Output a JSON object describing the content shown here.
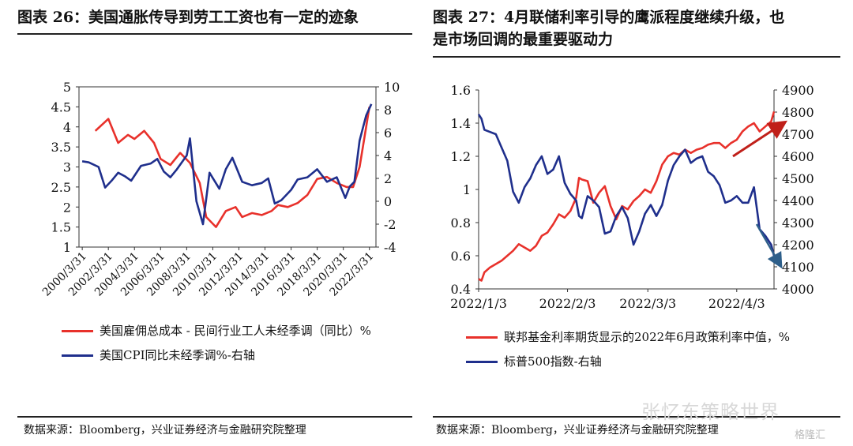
{
  "left": {
    "title": "图表 26：美国通胀传导到劳工工资也有一定的迹象",
    "source": "数据来源：Bloomberg，兴业证券经济与金融研究院整理",
    "legend": [
      "美国雇佣总成本 - 民间行业工人未经季调（同比）%",
      "美国CPI同比未经季调%-右轴"
    ]
  },
  "right": {
    "title_line1": "图表 27：4月联储利率引导的鹰派程度继续升级，也",
    "title_line2": "是市场回调的最重要驱动力",
    "source": "数据来源：Bloomberg，兴业证券经济与金融研究院整理",
    "legend": [
      "联邦基金利率期货显示的2022年6月政策利率中值，%",
      "标普500指数-右轴"
    ]
  },
  "watermark": "张忆东策略世界",
  "watermark2": "格隆汇",
  "colors": {
    "red": "#e8312b",
    "blue": "#1f2f8c",
    "dark_red": "#c0201a",
    "arrow_blue": "#2e5f8a"
  },
  "chart_data": [
    {
      "type": "line",
      "x_ticks": [
        "2000/3/31",
        "2002/3/31",
        "2004/3/31",
        "2006/3/31",
        "2008/3/31",
        "2010/3/31",
        "2012/3/31",
        "2014/3/31",
        "2016/3/31",
        "2018/3/31",
        "2020/3/31",
        "2022/3/31"
      ],
      "y_left": {
        "ticks": [
          "5",
          "4.5",
          "4",
          "3.5",
          "3",
          "2.5",
          "2",
          "1.5",
          "1"
        ],
        "range": [
          1,
          5
        ]
      },
      "y_right": {
        "ticks": [
          "10",
          "8",
          "6",
          "4",
          "2",
          "0",
          "-2",
          "-4"
        ],
        "range": [
          -4,
          10
        ]
      },
      "series": [
        {
          "name": "美国雇佣总成本 - 民间行业工人未经季调（同比）%",
          "axis": "left",
          "x": [
            2001.25,
            2002.25,
            2003.0,
            2003.75,
            2004.25,
            2005.0,
            2005.75,
            2006.25,
            2007.0,
            2007.75,
            2008.5,
            2009.25,
            2009.75,
            2010.5,
            2011.25,
            2012.0,
            2012.5,
            2013.25,
            2014.0,
            2014.75,
            2015.25,
            2016.0,
            2016.75,
            2017.5,
            2018.25,
            2019.0,
            2019.75,
            2020.5,
            2021.0,
            2021.5,
            2022.0,
            2022.25
          ],
          "y": [
            3.9,
            4.2,
            3.6,
            3.8,
            3.7,
            3.9,
            3.6,
            3.2,
            3.05,
            3.35,
            3.1,
            2.6,
            1.75,
            1.5,
            1.9,
            2.0,
            1.75,
            1.85,
            1.8,
            1.9,
            2.05,
            2.0,
            2.1,
            2.3,
            2.7,
            2.75,
            2.6,
            2.5,
            2.5,
            3.0,
            4.0,
            4.5
          ]
        },
        {
          "name": "美国CPI同比未经季调%-右轴",
          "axis": "right",
          "x": [
            2000.25,
            2000.75,
            2001.5,
            2002.0,
            2002.5,
            2003.0,
            2003.5,
            2004.0,
            2004.75,
            2005.5,
            2006.0,
            2006.5,
            2007.0,
            2007.5,
            2008.25,
            2008.5,
            2009.0,
            2009.5,
            2010.0,
            2010.75,
            2011.25,
            2011.75,
            2012.5,
            2013.25,
            2014.0,
            2014.5,
            2015.0,
            2015.5,
            2016.25,
            2016.75,
            2017.5,
            2018.25,
            2019.0,
            2019.75,
            2020.4,
            2020.75,
            2021.1,
            2021.5,
            2022.0,
            2022.4
          ],
          "y": [
            3.5,
            3.4,
            3.0,
            1.2,
            1.8,
            2.5,
            2.2,
            1.8,
            3.1,
            3.3,
            3.7,
            2.6,
            2.1,
            2.8,
            4.0,
            5.5,
            0.0,
            -2.0,
            2.5,
            1.1,
            2.8,
            3.8,
            1.7,
            1.4,
            1.6,
            2.0,
            -0.2,
            0.1,
            1.0,
            1.9,
            2.1,
            2.8,
            1.7,
            2.1,
            0.3,
            1.3,
            1.7,
            5.3,
            7.5,
            8.5
          ]
        }
      ]
    },
    {
      "type": "line",
      "x_ticks": [
        "2022/1/3",
        "2022/2/3",
        "2022/3/3",
        "2022/4/3"
      ],
      "y_left": {
        "ticks": [
          "1.6",
          "1.4",
          "1.2",
          "1",
          "0.8",
          "0.6",
          "0.4"
        ],
        "range": [
          0.4,
          1.6
        ]
      },
      "y_right": {
        "ticks": [
          "4900",
          "4800",
          "4700",
          "4600",
          "4500",
          "4400",
          "4300",
          "4200",
          "4100",
          "4000"
        ],
        "range": [
          4000,
          4900
        ]
      },
      "series": [
        {
          "name": "联邦基金利率期货显示的2022年6月政策利率中值，%",
          "axis": "left",
          "x": [
            0,
            1,
            2,
            4,
            6,
            8,
            10,
            12,
            14,
            16,
            18,
            20,
            22,
            24,
            26,
            28,
            30,
            32,
            34,
            35,
            36,
            38,
            40,
            42,
            44,
            46,
            48,
            50,
            52,
            54,
            56,
            58,
            60,
            62,
            64,
            66,
            68,
            70,
            72,
            74,
            76,
            78,
            80,
            82,
            84,
            86,
            88,
            90,
            92,
            94,
            96,
            98,
            100,
            102,
            103
          ],
          "y": [
            0.46,
            0.45,
            0.5,
            0.53,
            0.55,
            0.57,
            0.6,
            0.63,
            0.67,
            0.65,
            0.63,
            0.66,
            0.72,
            0.74,
            0.79,
            0.85,
            0.83,
            0.87,
            0.95,
            1.07,
            1.06,
            1.05,
            0.92,
            0.98,
            1.02,
            0.9,
            0.82,
            0.9,
            0.88,
            0.93,
            0.96,
            1.0,
            0.98,
            1.05,
            1.15,
            1.2,
            1.22,
            1.21,
            1.24,
            1.22,
            1.24,
            1.25,
            1.27,
            1.28,
            1.28,
            1.25,
            1.28,
            1.3,
            1.35,
            1.38,
            1.4,
            1.35,
            1.38,
            1.41,
            1.47
          ]
        },
        {
          "name": "标普500指数-右轴",
          "axis": "right",
          "x": [
            0,
            1,
            2,
            4,
            6,
            8,
            10,
            12,
            14,
            16,
            17,
            18,
            20,
            22,
            24,
            26,
            28,
            30,
            32,
            34,
            35,
            36,
            38,
            40,
            42,
            44,
            46,
            48,
            50,
            52,
            54,
            56,
            58,
            60,
            62,
            64,
            66,
            68,
            70,
            72,
            74,
            76,
            78,
            80,
            82,
            84,
            86,
            88,
            90,
            92,
            94,
            96,
            98,
            100,
            102,
            103
          ],
          "y": [
            4790,
            4770,
            4720,
            4710,
            4700,
            4640,
            4580,
            4440,
            4390,
            4460,
            4480,
            4500,
            4560,
            4600,
            4520,
            4540,
            4600,
            4480,
            4430,
            4400,
            4330,
            4320,
            4420,
            4400,
            4370,
            4250,
            4260,
            4330,
            4370,
            4320,
            4200,
            4260,
            4340,
            4380,
            4330,
            4380,
            4490,
            4560,
            4600,
            4630,
            4570,
            4590,
            4600,
            4530,
            4510,
            4470,
            4390,
            4400,
            4420,
            4390,
            4390,
            4460,
            4270,
            4240,
            4200,
            4150
          ]
        }
      ]
    }
  ]
}
